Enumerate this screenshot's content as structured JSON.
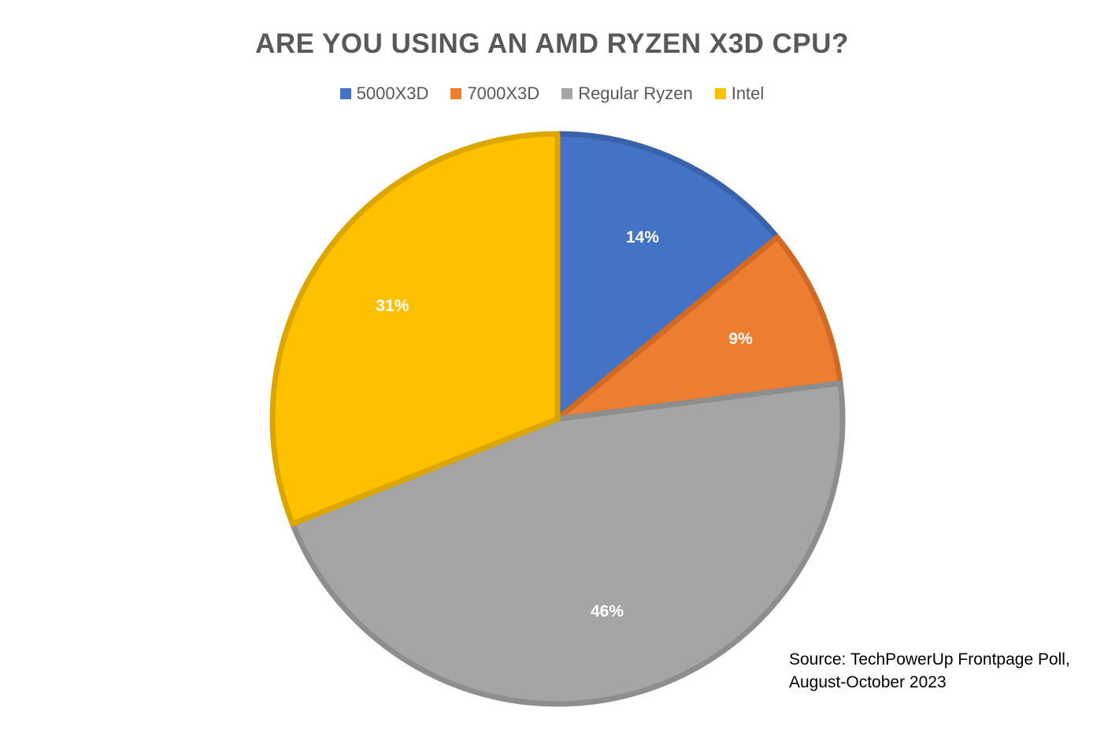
{
  "chart_data": {
    "type": "pie",
    "title": "ARE YOU USING AN AMD RYZEN X3D CPU?",
    "categories": [
      "5000X3D",
      "7000X3D",
      "Regular Ryzen",
      "Intel"
    ],
    "values": [
      14,
      9,
      46,
      31
    ],
    "data_labels": [
      "14%",
      "9%",
      "46%",
      "31%"
    ],
    "colors": [
      "#4472C4",
      "#ED7D31",
      "#A5A5A5",
      "#FFC000"
    ],
    "border_colors": [
      "#3A62AA",
      "#D06B25",
      "#8E8E8E",
      "#DCA600"
    ],
    "legend_position": "top",
    "start_angle": "12 o'clock, clockwise"
  },
  "source": {
    "line1": "Source: TechPowerUp Frontpage Poll,",
    "line2": "August-October 2023"
  }
}
